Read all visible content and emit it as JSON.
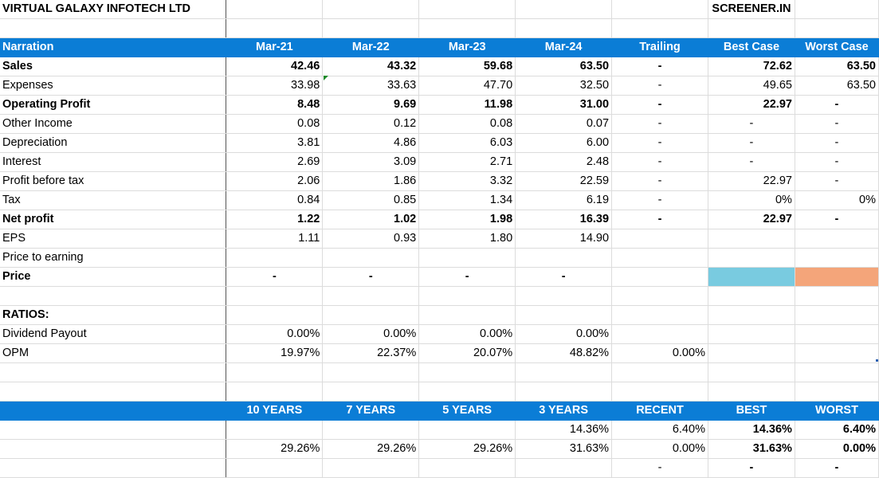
{
  "company": "VIRTUAL GALAXY INFOTECH LTD",
  "source": "SCREENER.IN",
  "columns": [
    "Narration",
    "Mar-21",
    "Mar-22",
    "Mar-23",
    "Mar-24",
    "Trailing",
    "Best Case",
    "Worst Case"
  ],
  "rows": [
    {
      "label": "Sales",
      "bold": true,
      "values": [
        "42.46",
        "43.32",
        "59.68",
        "63.50",
        "-",
        "72.62",
        "63.50"
      ]
    },
    {
      "label": "Expenses",
      "bold": false,
      "values": [
        "33.98",
        "33.63",
        "47.70",
        "32.50",
        "-",
        "49.65",
        "63.50"
      ]
    },
    {
      "label": "Operating Profit",
      "bold": true,
      "values": [
        "8.48",
        "9.69",
        "11.98",
        "31.00",
        "-",
        "22.97",
        "-"
      ]
    },
    {
      "label": "Other Income",
      "bold": false,
      "values": [
        "0.08",
        "0.12",
        "0.08",
        "0.07",
        "-",
        "-",
        "-"
      ]
    },
    {
      "label": "Depreciation",
      "bold": false,
      "values": [
        "3.81",
        "4.86",
        "6.03",
        "6.00",
        "-",
        "-",
        "-"
      ]
    },
    {
      "label": "Interest",
      "bold": false,
      "values": [
        "2.69",
        "3.09",
        "2.71",
        "2.48",
        "-",
        "-",
        "-"
      ]
    },
    {
      "label": "Profit before tax",
      "bold": false,
      "values": [
        "2.06",
        "1.86",
        "3.32",
        "22.59",
        "-",
        "22.97",
        "-"
      ]
    },
    {
      "label": "Tax",
      "bold": false,
      "values": [
        "0.84",
        "0.85",
        "1.34",
        "6.19",
        "-",
        "0%",
        "0%"
      ]
    },
    {
      "label": "Net profit",
      "bold": true,
      "values": [
        "1.22",
        "1.02",
        "1.98",
        "16.39",
        "-",
        "22.97",
        "-"
      ]
    },
    {
      "label": "EPS",
      "bold": false,
      "values": [
        "1.11",
        "0.93",
        "1.80",
        "14.90",
        "",
        "",
        ""
      ]
    },
    {
      "label": "Price to earning",
      "bold": false,
      "values": [
        "",
        "",
        "",
        "",
        "",
        "",
        ""
      ]
    },
    {
      "label": "Price",
      "bold": true,
      "values": [
        "-",
        "-",
        "-",
        "-",
        "",
        "",
        ""
      ]
    }
  ],
  "ratios": {
    "title": "RATIOS:",
    "rows": [
      {
        "label": "Dividend Payout",
        "values": [
          "0.00%",
          "0.00%",
          "0.00%",
          "0.00%",
          "",
          "",
          ""
        ]
      },
      {
        "label": "OPM",
        "values": [
          "19.97%",
          "22.37%",
          "20.07%",
          "48.82%",
          "0.00%",
          "",
          ""
        ]
      }
    ]
  },
  "growth": {
    "headers": [
      "10 YEARS",
      "7 YEARS",
      "5 YEARS",
      "3 YEARS",
      "RECENT",
      "BEST",
      "WORST"
    ],
    "rows": [
      [
        "",
        "",
        "",
        "14.36%",
        "6.40%",
        "14.36%",
        "6.40%"
      ],
      [
        "29.26%",
        "29.26%",
        "29.26%",
        "31.63%",
        "0.00%",
        "31.63%",
        "0.00%"
      ],
      [
        "",
        "",
        "",
        "",
        "-",
        "-",
        "-"
      ]
    ]
  },
  "colors": {
    "header_bg": "#0b7dd6",
    "best_fill": "#79cbe0",
    "worst_fill": "#f4a57a"
  }
}
